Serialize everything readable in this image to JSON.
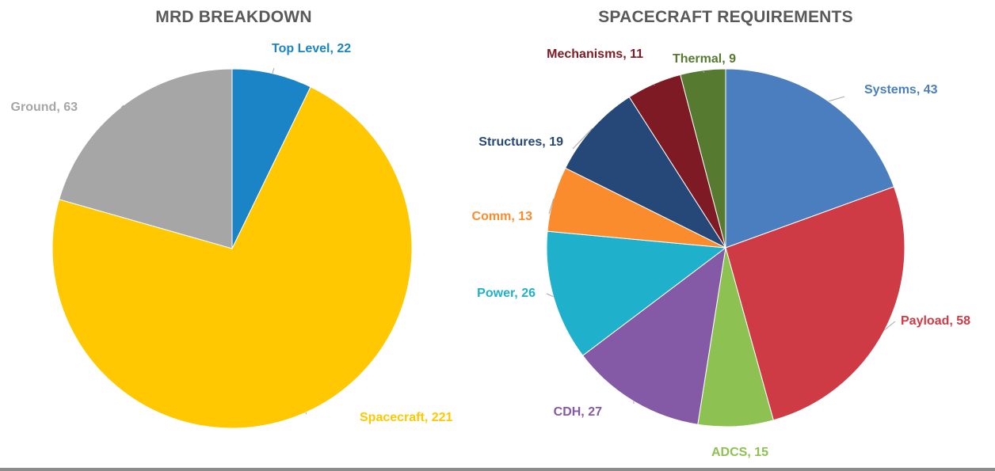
{
  "chart_data": [
    {
      "type": "pie",
      "title": "MRD BREAKDOWN",
      "start_angle": 0,
      "slices": [
        {
          "label": "Top Level",
          "value": 22,
          "color": "#1B84C6"
        },
        {
          "label": "Spacecraft",
          "value": 221,
          "color": "#FFC800"
        },
        {
          "label": "Ground",
          "value": 63,
          "color": "#A6A6A6"
        }
      ]
    },
    {
      "type": "pie",
      "title": "SPACECRAFT REQUIREMENTS",
      "start_angle": 0,
      "slices": [
        {
          "label": "Systems",
          "value": 43,
          "color": "#4A7EBF"
        },
        {
          "label": "Payload",
          "value": 58,
          "color": "#CE3B45"
        },
        {
          "label": "ADCS",
          "value": 15,
          "color": "#8DC152"
        },
        {
          "label": "CDH",
          "value": 27,
          "color": "#8459A5"
        },
        {
          "label": "Power",
          "value": 26,
          "color": "#1FB0CB"
        },
        {
          "label": "Comm",
          "value": 13,
          "color": "#FB8C2D"
        },
        {
          "label": "Structures",
          "value": 19,
          "color": "#264878"
        },
        {
          "label": "Mechanisms",
          "value": 11,
          "color": "#7E1A24"
        },
        {
          "label": "Thermal",
          "value": 9,
          "color": "#567A2F"
        }
      ]
    }
  ]
}
